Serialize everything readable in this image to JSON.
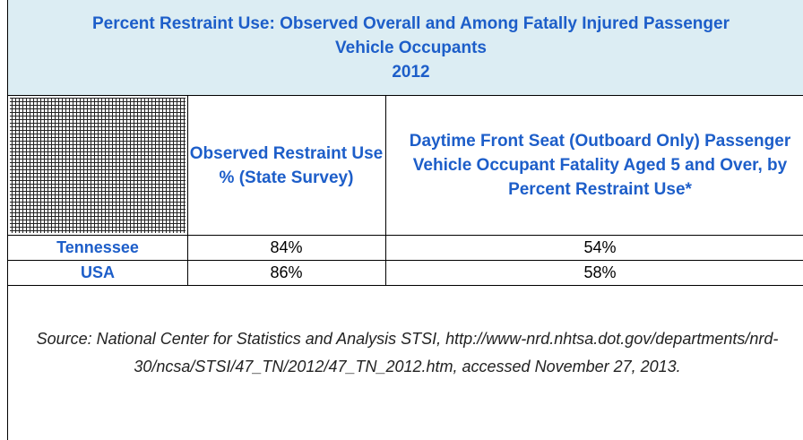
{
  "title": "Percent Restraint Use: Observed Overall and Among Fatally Injured Passenger Vehicle Occupants",
  "year": "2012",
  "table": {
    "headers": [
      "Observed Restraint Use % (State Survey)",
      "Daytime Front Seat (Outboard Only) Passenger Vehicle Occupant Fatality Aged 5 and Over, by Percent Restraint Use*"
    ],
    "rows": [
      [
        "Tennessee",
        "84%",
        "54%"
      ],
      [
        "USA",
        "86%",
        "58%"
      ]
    ]
  },
  "source": "Source: National Center for Statistics and Analysis STSI, http://www-nrd.nhtsa.dot.gov/departments/nrd-30/ncsa/STSI/47_TN/2012/47_TN_2012.htm, accessed November 27, 2013."
}
